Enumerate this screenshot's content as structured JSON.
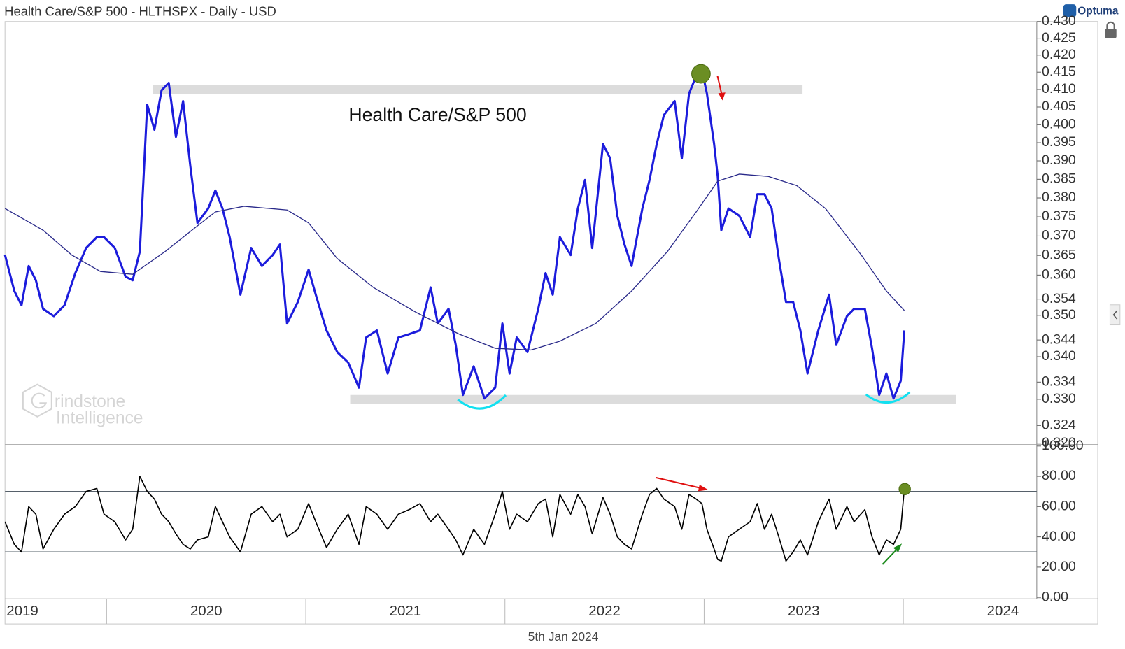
{
  "header": {
    "title": "Health Care/S&P 500 - HLTHSPX - Daily - USD",
    "brand": "Optuma",
    "date": "5th Jan 2024"
  },
  "watermark": {
    "line1": "rindstone",
    "line2": "Intelligence"
  },
  "chart_data": [
    {
      "type": "line",
      "annotation": "Health Care/S&P 500",
      "log_scale": true,
      "xlim": [
        2019.49,
        2024.67
      ],
      "ylim": [
        0.32,
        0.43
      ],
      "yticks": [
        {
          "value": 0.32,
          "label": "0.320"
        },
        {
          "value": 0.324,
          "label": "0.324"
        },
        {
          "value": 0.33,
          "label": "0.330"
        },
        {
          "value": 0.334,
          "label": "0.334"
        },
        {
          "value": 0.34,
          "label": "0.340"
        },
        {
          "value": 0.344,
          "label": "0.344"
        },
        {
          "value": 0.35,
          "label": "0.350"
        },
        {
          "value": 0.354,
          "label": "0.354"
        },
        {
          "value": 0.36,
          "label": "0.360"
        },
        {
          "value": 0.365,
          "label": "0.365"
        },
        {
          "value": 0.37,
          "label": "0.370"
        },
        {
          "value": 0.375,
          "label": "0.375"
        },
        {
          "value": 0.38,
          "label": "0.380"
        },
        {
          "value": 0.385,
          "label": "0.385"
        },
        {
          "value": 0.39,
          "label": "0.390"
        },
        {
          "value": 0.395,
          "label": "0.395"
        },
        {
          "value": 0.4,
          "label": "0.400"
        },
        {
          "value": 0.405,
          "label": "0.405"
        },
        {
          "value": 0.41,
          "label": "0.410"
        },
        {
          "value": 0.415,
          "label": "0.415"
        },
        {
          "value": 0.42,
          "label": "0.420"
        },
        {
          "value": 0.425,
          "label": "0.425"
        },
        {
          "value": 0.43,
          "label": "0.430"
        }
      ],
      "bands": [
        {
          "value": 0.41,
          "x": [
            2020.232,
            2023.494
          ]
        },
        {
          "value": 0.33,
          "x": [
            2021.223,
            2024.265
          ]
        }
      ],
      "series": [
        {
          "color": "#1c1cdc",
          "width": 3,
          "x": [
            2019.49,
            2019.537,
            2019.573,
            2019.609,
            2019.645,
            2019.681,
            2019.735,
            2019.789,
            2019.843,
            2019.897,
            2019.951,
            2019.987,
            2020.041,
            2020.095,
            2020.131,
            2020.167,
            2020.204,
            2020.24,
            2020.276,
            2020.312,
            2020.348,
            2020.384,
            2020.42,
            2020.456,
            2020.51,
            2020.546,
            2020.582,
            2020.618,
            2020.672,
            2020.726,
            2020.78,
            2020.834,
            2020.87,
            2020.906,
            2020.96,
            2021.014,
            2021.05,
            2021.104,
            2021.158,
            2021.213,
            2021.267,
            2021.303,
            2021.357,
            2021.411,
            2021.465,
            2021.519,
            2021.573,
            2021.627,
            2021.663,
            2021.717,
            2021.753,
            2021.789,
            2021.843,
            2021.897,
            2021.951,
            2021.987,
            2022.023,
            2022.059,
            2022.113,
            2022.167,
            2022.204,
            2022.24,
            2022.276,
            2022.33,
            2022.366,
            2022.402,
            2022.438,
            2022.492,
            2022.528,
            2022.564,
            2022.6,
            2022.636,
            2022.69,
            2022.726,
            2022.762,
            2022.798,
            2022.852,
            2022.888,
            2022.924,
            2022.96,
            2022.989,
            2023.014,
            2023.05,
            2023.068,
            2023.086,
            2023.122,
            2023.176,
            2023.231,
            2023.267,
            2023.303,
            2023.339,
            2023.375,
            2023.411,
            2023.447,
            2023.483,
            2023.519,
            2023.573,
            2023.627,
            2023.663,
            2023.717,
            2023.753,
            2023.807,
            2023.843,
            2023.879,
            2023.915,
            2023.951,
            2023.987,
            2024.005
          ],
          "values": [
            0.3651,
            0.356,
            0.3525,
            0.3623,
            0.3587,
            0.3516,
            0.3498,
            0.3525,
            0.3605,
            0.3669,
            0.3697,
            0.3697,
            0.3669,
            0.3596,
            0.3587,
            0.366,
            0.4057,
            0.3986,
            0.4098,
            0.4119,
            0.3966,
            0.4067,
            0.3887,
            0.3734,
            0.3772,
            0.382,
            0.3772,
            0.3697,
            0.3551,
            0.3669,
            0.3623,
            0.3651,
            0.3678,
            0.348,
            0.3533,
            0.3614,
            0.3551,
            0.3463,
            0.3411,
            0.3386,
            0.3327,
            0.3446,
            0.3463,
            0.336,
            0.3446,
            0.3454,
            0.3463,
            0.3569,
            0.348,
            0.3516,
            0.3428,
            0.331,
            0.3377,
            0.3302,
            0.3327,
            0.348,
            0.336,
            0.3446,
            0.3411,
            0.3516,
            0.3605,
            0.3551,
            0.3697,
            0.3651,
            0.3772,
            0.3848,
            0.3669,
            0.3946,
            0.3907,
            0.3753,
            0.3678,
            0.3623,
            0.3772,
            0.3848,
            0.3946,
            0.4027,
            0.4067,
            0.3907,
            0.4088,
            0.4139,
            0.4156,
            0.4088,
            0.3946,
            0.3858,
            0.3715,
            0.3772,
            0.3753,
            0.3697,
            0.381,
            0.381,
            0.3772,
            0.3642,
            0.3533,
            0.3533,
            0.3463,
            0.336,
            0.3463,
            0.3551,
            0.3428,
            0.3498,
            0.3516,
            0.3516,
            0.342,
            0.331,
            0.336,
            0.3302,
            0.3343,
            0.3463
          ]
        },
        {
          "color": "#2a2a8a",
          "width": 1.3,
          "x": [
            2019.49,
            2019.681,
            2019.825,
            2019.969,
            2020.131,
            2020.294,
            2020.438,
            2020.546,
            2020.69,
            2020.906,
            2021.014,
            2021.158,
            2021.339,
            2021.555,
            2021.771,
            2021.951,
            2022.131,
            2022.276,
            2022.456,
            2022.636,
            2022.816,
            2022.96,
            2023.068,
            2023.176,
            2023.321,
            2023.465,
            2023.609,
            2023.789,
            2023.915,
            2024.005
          ],
          "values": [
            0.3772,
            0.3715,
            0.3651,
            0.3609,
            0.3602,
            0.366,
            0.3719,
            0.3763,
            0.3778,
            0.3768,
            0.3734,
            0.3642,
            0.3569,
            0.3507,
            0.3454,
            0.342,
            0.3416,
            0.3437,
            0.348,
            0.356,
            0.366,
            0.3763,
            0.3845,
            0.3864,
            0.3858,
            0.3833,
            0.3772,
            0.3651,
            0.356,
            0.3512
          ]
        }
      ]
    },
    {
      "type": "line",
      "xlim": [
        2019.49,
        2024.67
      ],
      "ylim": [
        0,
        100
      ],
      "xticks": [
        2019,
        2020,
        2021,
        2022,
        2023,
        2024
      ],
      "yticks": [
        {
          "value": 0,
          "label": "0.00"
        },
        {
          "value": 20,
          "label": "20.00"
        },
        {
          "value": 40,
          "label": "40.00"
        },
        {
          "value": 60,
          "label": "60.00"
        },
        {
          "value": 80,
          "label": "80.00"
        },
        {
          "value": 100,
          "label": "100.00"
        }
      ],
      "hlines": [
        70,
        30
      ],
      "series": [
        {
          "color": "#000000",
          "width": 1.6,
          "x": [
            2019.49,
            2019.537,
            2019.573,
            2019.609,
            2019.645,
            2019.681,
            2019.735,
            2019.789,
            2019.843,
            2019.897,
            2019.951,
            2019.987,
            2020.041,
            2020.095,
            2020.131,
            2020.167,
            2020.204,
            2020.24,
            2020.276,
            2020.312,
            2020.348,
            2020.384,
            2020.42,
            2020.456,
            2020.51,
            2020.546,
            2020.582,
            2020.618,
            2020.672,
            2020.726,
            2020.78,
            2020.834,
            2020.87,
            2020.906,
            2020.96,
            2021.014,
            2021.05,
            2021.104,
            2021.158,
            2021.213,
            2021.267,
            2021.303,
            2021.357,
            2021.411,
            2021.465,
            2021.519,
            2021.573,
            2021.627,
            2021.663,
            2021.717,
            2021.753,
            2021.789,
            2021.843,
            2021.897,
            2021.951,
            2021.987,
            2022.023,
            2022.059,
            2022.113,
            2022.167,
            2022.204,
            2022.24,
            2022.276,
            2022.33,
            2022.366,
            2022.402,
            2022.438,
            2022.492,
            2022.528,
            2022.564,
            2022.6,
            2022.636,
            2022.69,
            2022.726,
            2022.762,
            2022.798,
            2022.852,
            2022.888,
            2022.924,
            2022.96,
            2022.989,
            2023.014,
            2023.05,
            2023.068,
            2023.086,
            2023.122,
            2023.176,
            2023.231,
            2023.267,
            2023.303,
            2023.339,
            2023.375,
            2023.411,
            2023.447,
            2023.483,
            2023.519,
            2023.573,
            2023.627,
            2023.663,
            2023.717,
            2023.753,
            2023.807,
            2023.843,
            2023.879,
            2023.915,
            2023.951,
            2023.987,
            2024.005
          ],
          "values": [
            50,
            35,
            30,
            60,
            55,
            32,
            45,
            55,
            60,
            70,
            72,
            55,
            50,
            38,
            45,
            80,
            70,
            65,
            55,
            50,
            42,
            35,
            32,
            38,
            40,
            60,
            50,
            40,
            30,
            55,
            60,
            50,
            55,
            40,
            45,
            62,
            50,
            33,
            45,
            55,
            35,
            60,
            55,
            45,
            55,
            58,
            62,
            50,
            55,
            45,
            38,
            28,
            45,
            35,
            55,
            70,
            45,
            55,
            50,
            62,
            65,
            40,
            68,
            55,
            68,
            60,
            42,
            66,
            55,
            40,
            35,
            32,
            55,
            68,
            72,
            65,
            60,
            45,
            68,
            65,
            62,
            45,
            32,
            25,
            24,
            40,
            45,
            50,
            62,
            45,
            55,
            40,
            24,
            30,
            38,
            28,
            50,
            65,
            45,
            60,
            50,
            58,
            40,
            28,
            38,
            35,
            45,
            72
          ]
        }
      ]
    }
  ]
}
